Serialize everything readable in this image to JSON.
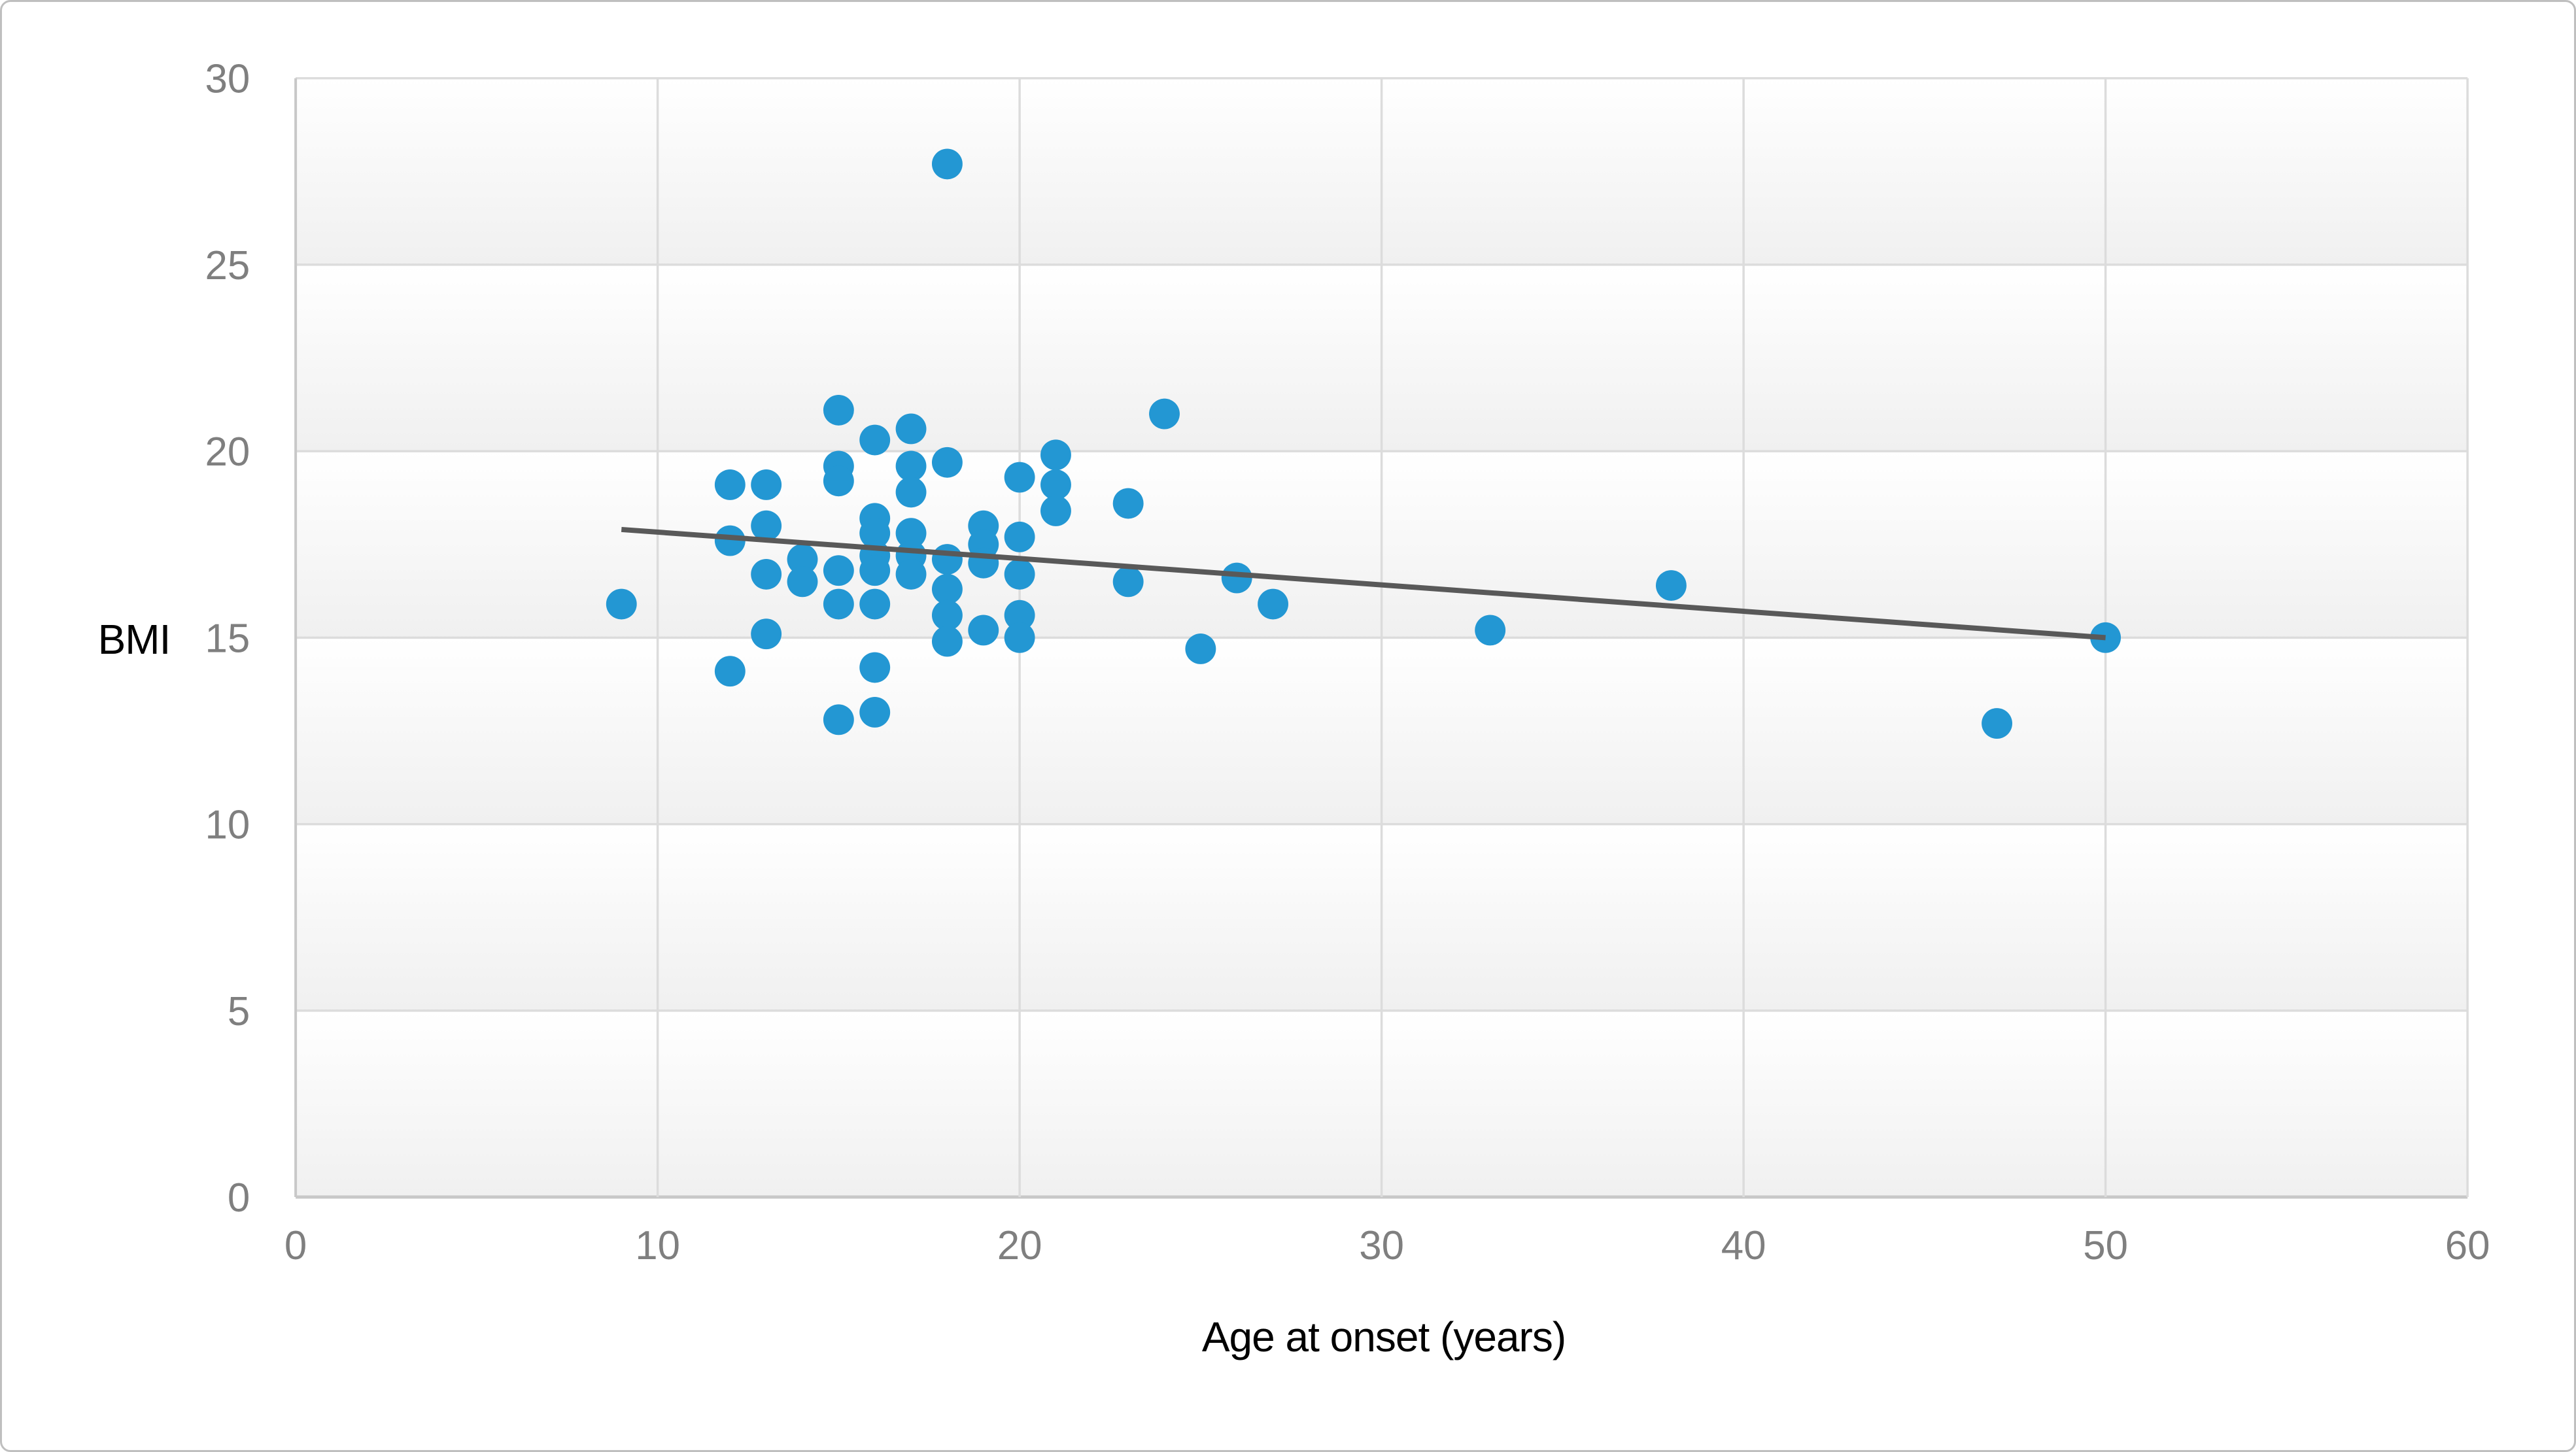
{
  "figure": {
    "x_axis_title": "Age at onset (years)",
    "y_axis_title": "BMI"
  },
  "chart_data": {
    "type": "scatter",
    "title": "",
    "xlabel": "Age at onset (years)",
    "ylabel": "BMI",
    "xlim": [
      0,
      60
    ],
    "ylim": [
      0,
      30
    ],
    "x_ticks": [
      0,
      10,
      20,
      30,
      40,
      50,
      60
    ],
    "y_ticks": [
      0,
      5,
      10,
      15,
      20,
      25,
      30
    ],
    "grid": true,
    "legend": "none",
    "marker_radius": 23.5,
    "points": [
      [
        9,
        15.9
      ],
      [
        12,
        19.1
      ],
      [
        12,
        17.6
      ],
      [
        12,
        14.1
      ],
      [
        13,
        19.1
      ],
      [
        13,
        18.0
      ],
      [
        13,
        16.7
      ],
      [
        13,
        15.1
      ],
      [
        14,
        17.1
      ],
      [
        14,
        16.5
      ],
      [
        15,
        21.1
      ],
      [
        15,
        19.6
      ],
      [
        15,
        19.2
      ],
      [
        15,
        16.8
      ],
      [
        15,
        15.9
      ],
      [
        15,
        12.8
      ],
      [
        16,
        20.3
      ],
      [
        16,
        18.2
      ],
      [
        16,
        17.8
      ],
      [
        16,
        17.2
      ],
      [
        16,
        16.8
      ],
      [
        16,
        15.9
      ],
      [
        16,
        14.2
      ],
      [
        16,
        13.0
      ],
      [
        17,
        20.6
      ],
      [
        17,
        19.6
      ],
      [
        17,
        18.9
      ],
      [
        17,
        17.8
      ],
      [
        17,
        17.2
      ],
      [
        17,
        16.7
      ],
      [
        18,
        27.7
      ],
      [
        18,
        19.7
      ],
      [
        18,
        17.1
      ],
      [
        18,
        16.3
      ],
      [
        18,
        15.6
      ],
      [
        18,
        14.9
      ],
      [
        19,
        18.0
      ],
      [
        19,
        17.5
      ],
      [
        19,
        17.0
      ],
      [
        19,
        15.2
      ],
      [
        20,
        19.3
      ],
      [
        20,
        17.7
      ],
      [
        20,
        16.7
      ],
      [
        20,
        15.6
      ],
      [
        20,
        15.0
      ],
      [
        21,
        19.9
      ],
      [
        21,
        19.1
      ],
      [
        21,
        18.4
      ],
      [
        23,
        18.6
      ],
      [
        23,
        16.5
      ],
      [
        24,
        21.0
      ],
      [
        25,
        14.7
      ],
      [
        26,
        16.6
      ],
      [
        27,
        15.9
      ],
      [
        33,
        15.2
      ],
      [
        38,
        16.4
      ],
      [
        47,
        12.7
      ],
      [
        50,
        15.0
      ]
    ],
    "trendline": {
      "x1": 9,
      "y1": 17.9,
      "x2": 50,
      "y2": 15.0
    },
    "colors": {
      "marker": "#2397D3",
      "trendline": "#595959",
      "gridline": "#DCDCDC",
      "axis_line": "#C8C8C8",
      "tick_label": "#7F7F7F",
      "axis_title": "#000000",
      "band_top": "#FFFFFF",
      "band_bottom": "#F0F0F0",
      "figure_border": "#BFBFBF",
      "background": "#FFFFFF"
    }
  }
}
